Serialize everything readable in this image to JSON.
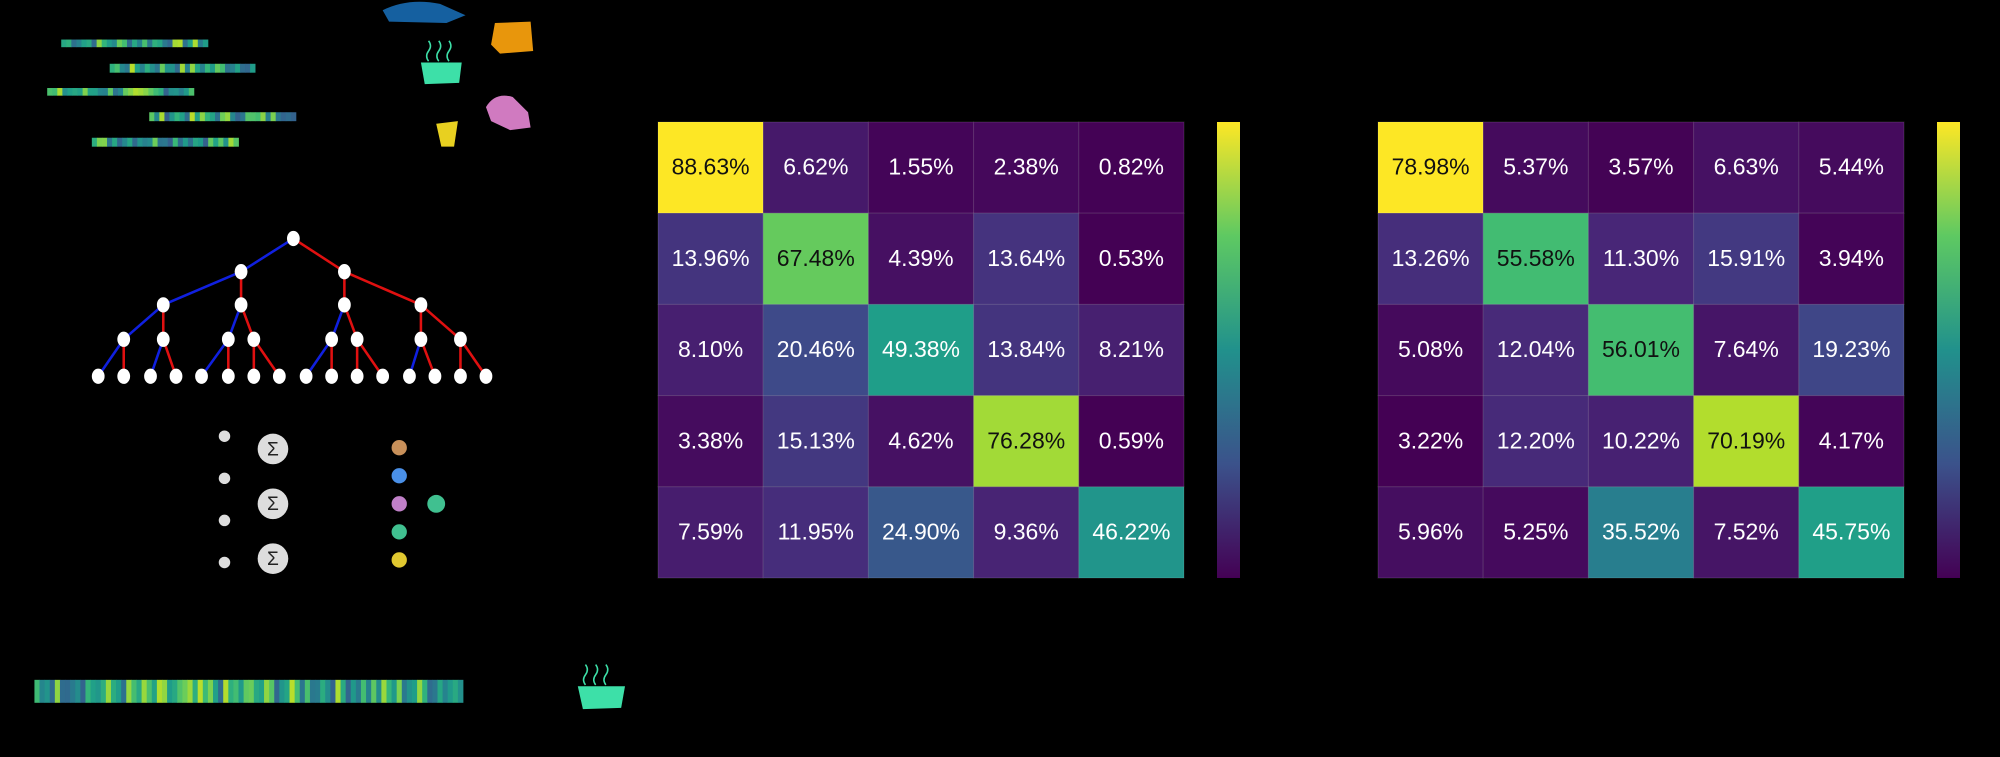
{
  "chart_data": [
    {
      "type": "heatmap",
      "values": [
        [
          88.63,
          6.62,
          1.55,
          2.38,
          0.82
        ],
        [
          13.96,
          67.48,
          4.39,
          13.64,
          0.53
        ],
        [
          8.1,
          20.46,
          49.38,
          13.84,
          8.21
        ],
        [
          3.38,
          15.13,
          4.62,
          76.28,
          0.59
        ],
        [
          7.59,
          11.95,
          24.9,
          9.36,
          46.22
        ]
      ],
      "value_labels": [
        [
          "88.63%",
          "6.62%",
          "1.55%",
          "2.38%",
          "0.82%"
        ],
        [
          "13.96%",
          "67.48%",
          "4.39%",
          "13.64%",
          "0.53%"
        ],
        [
          "8.10%",
          "20.46%",
          "49.38%",
          "13.84%",
          "8.21%"
        ],
        [
          "3.38%",
          "15.13%",
          "4.62%",
          "76.28%",
          "0.59%"
        ],
        [
          "7.59%",
          "11.95%",
          "24.90%",
          "9.36%",
          "46.22%"
        ]
      ]
    },
    {
      "type": "heatmap",
      "values": [
        [
          78.98,
          5.37,
          3.57,
          6.63,
          5.44
        ],
        [
          13.26,
          55.58,
          11.3,
          15.91,
          3.94
        ],
        [
          5.08,
          12.04,
          56.01,
          7.64,
          19.23
        ],
        [
          3.22,
          12.2,
          10.22,
          70.19,
          4.17
        ],
        [
          5.96,
          5.25,
          35.52,
          7.52,
          45.75
        ]
      ],
      "value_labels": [
        [
          "78.98%",
          "5.37%",
          "3.57%",
          "6.63%",
          "5.44%"
        ],
        [
          "13.26%",
          "55.58%",
          "11.30%",
          "15.91%",
          "3.94%"
        ],
        [
          "5.08%",
          "12.04%",
          "56.01%",
          "7.64%",
          "19.23%"
        ],
        [
          "3.22%",
          "12.20%",
          "10.22%",
          "70.19%",
          "4.17%"
        ],
        [
          "5.96%",
          "5.25%",
          "35.52%",
          "7.52%",
          "45.75%"
        ]
      ]
    }
  ],
  "nodes": [
    {
      "label": "Σ"
    },
    {
      "label": "Σ"
    },
    {
      "label": "Σ"
    }
  ]
}
